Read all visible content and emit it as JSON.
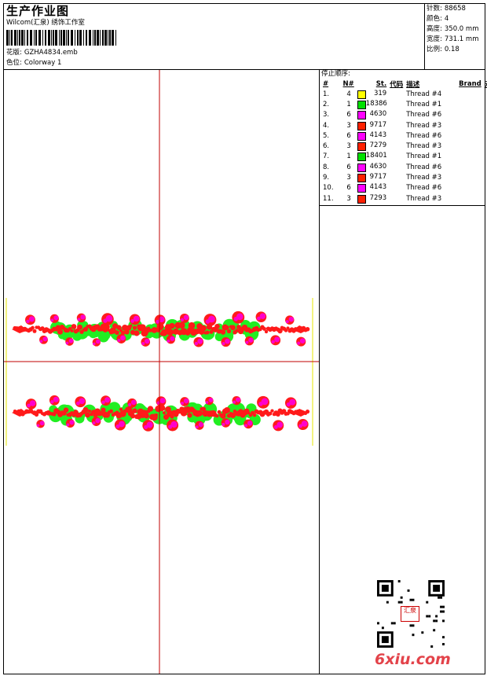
{
  "header": {
    "title": "生产作业图",
    "company": "Wilcom(汇泉) 绣饰工作室",
    "design_label": "花版:",
    "design_value": "GZHA4834.emb",
    "colorway_label": "色位:",
    "colorway_value": "Colorway 1"
  },
  "stats": [
    {
      "label": "针数:",
      "value": "88658"
    },
    {
      "label": "颜色:",
      "value": "4"
    },
    {
      "label": "高度:",
      "value": "350.0 mm"
    },
    {
      "label": "宽度:",
      "value": "731.1 mm"
    },
    {
      "label": "比例:",
      "value": "0.18"
    }
  ],
  "stop_sequence": {
    "heading": "停止顺序:",
    "columns": [
      "#",
      "N#",
      "St.",
      "代码",
      "描述",
      "Brand",
      "元素"
    ],
    "rows": [
      {
        "idx": "1.",
        "n": "4",
        "st": "319",
        "desc": "Thread #4",
        "color": "#ffff00"
      },
      {
        "idx": "2.",
        "n": "1",
        "st": "18386",
        "desc": "Thread #1",
        "color": "#00e000"
      },
      {
        "idx": "3.",
        "n": "6",
        "st": "4630",
        "desc": "Thread #6",
        "color": "#ff00ff"
      },
      {
        "idx": "4.",
        "n": "3",
        "st": "9717",
        "desc": "Thread #3",
        "color": "#ff2000"
      },
      {
        "idx": "5.",
        "n": "6",
        "st": "4143",
        "desc": "Thread #6",
        "color": "#ff00ff"
      },
      {
        "idx": "6.",
        "n": "3",
        "st": "7279",
        "desc": "Thread #3",
        "color": "#ff2000"
      },
      {
        "idx": "7.",
        "n": "1",
        "st": "18401",
        "desc": "Thread #1",
        "color": "#00e000"
      },
      {
        "idx": "8.",
        "n": "6",
        "st": "4630",
        "desc": "Thread #6",
        "color": "#ff00ff"
      },
      {
        "idx": "9.",
        "n": "3",
        "st": "9717",
        "desc": "Thread #3",
        "color": "#ff2000"
      },
      {
        "idx": "10.",
        "n": "6",
        "st": "4143",
        "desc": "Thread #6",
        "color": "#ff00ff"
      },
      {
        "idx": "11.",
        "n": "3",
        "st": "7293",
        "desc": "Thread #3",
        "color": "#ff2000"
      }
    ]
  },
  "watermark": "6xiu.com",
  "qr_stamp_text": "汇泉",
  "colors": {
    "crosshair": "#c00000",
    "guide": "#e6e600",
    "red": "#ff1a1a",
    "pink": "#ff00cc",
    "green": "#22ee22"
  }
}
